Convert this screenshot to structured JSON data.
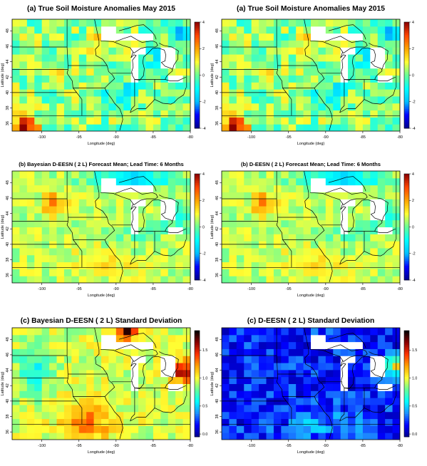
{
  "figure": {
    "layout": "3x2 grid of spatial heat maps over the US Midwest",
    "xlabel": "Longitude (deg)",
    "ylabel": "Latitude (deg)"
  },
  "colors": {
    "scale_anomaly": [
      "#00008b",
      "#0000ff",
      "#00bfff",
      "#00ffff",
      "#66ff99",
      "#ffff33",
      "#ffa500",
      "#ff4500",
      "#8b0000"
    ],
    "scale_sd": [
      "#00008b",
      "#0000ff",
      "#1e90ff",
      "#00ffff",
      "#66ff99",
      "#ffff33",
      "#ffa500",
      "#ff3300",
      "#8b0000",
      "#000000"
    ],
    "missing": "#ffffff",
    "gray_cell": "#bebebe",
    "boundaries": "#000000"
  },
  "chart_data": [
    {
      "type": "heatmap",
      "title": "(a) True Soil Moisture Anomalies  May   2015",
      "xlabel": "Longitude (deg)",
      "ylabel": "Latitude (deg)",
      "xlim": [
        -104,
        -80
      ],
      "ylim": [
        35,
        49.5
      ],
      "xticks": [
        -100,
        -95,
        -90,
        -85,
        -80
      ],
      "yticks": [
        36,
        38,
        40,
        42,
        44,
        46,
        48
      ],
      "colorbar": {
        "range": [
          -4,
          4
        ],
        "ticks": [
          -4,
          -2,
          0,
          2,
          4
        ]
      },
      "field": "truth"
    },
    {
      "type": "heatmap",
      "title": "(a) True Soil Moisture Anomalies  May   2015",
      "xlabel": "Longitude (deg)",
      "ylabel": "Latitude (deg)",
      "xlim": [
        -104,
        -80
      ],
      "ylim": [
        35,
        49.5
      ],
      "xticks": [
        -100,
        -95,
        -90,
        -85,
        -80
      ],
      "yticks": [
        36,
        38,
        40,
        42,
        44,
        46,
        48
      ],
      "colorbar": {
        "range": [
          -4,
          4
        ],
        "ticks": [
          -4,
          -2,
          0,
          2,
          4
        ]
      },
      "field": "truth"
    },
    {
      "type": "heatmap",
      "title": "(b) Bayesian D-EESN ( 2 L) Forecast Mean; Lead Time:  6  Months",
      "xlabel": "Longitude (deg)",
      "ylabel": "Latitude (deg)",
      "xlim": [
        -104,
        -80
      ],
      "ylim": [
        35,
        49.5
      ],
      "xticks": [
        -100,
        -95,
        -90,
        -85,
        -80
      ],
      "yticks": [
        36,
        38,
        40,
        42,
        44,
        46,
        48
      ],
      "colorbar": {
        "range": [
          -4,
          4
        ],
        "ticks": [
          -4,
          -2,
          0,
          2,
          4
        ]
      },
      "field": "forecast"
    },
    {
      "type": "heatmap",
      "title": "(b) D-EESN ( 2 L) Forecast Mean; Lead Time:  6  Months",
      "xlabel": "Longitude (deg)",
      "ylabel": "Latitude (deg)",
      "xlim": [
        -104,
        -80
      ],
      "ylim": [
        35,
        49.5
      ],
      "xticks": [
        -100,
        -95,
        -90,
        -85,
        -80
      ],
      "yticks": [
        36,
        38,
        40,
        42,
        44,
        46,
        48
      ],
      "colorbar": {
        "range": [
          -4,
          4
        ],
        "ticks": [
          -4,
          -2,
          0,
          2,
          4
        ]
      },
      "field": "forecast"
    },
    {
      "type": "heatmap",
      "title": "(c) Bayesian D-EESN ( 2 L) Standard Deviation",
      "xlabel": "Longitude (deg)",
      "ylabel": "Latitude (deg)",
      "xlim": [
        -104,
        -80
      ],
      "ylim": [
        35,
        49.5
      ],
      "xticks": [
        -100,
        -95,
        -90,
        -85,
        -80
      ],
      "yticks": [
        36,
        38,
        40,
        42,
        44,
        46,
        48
      ],
      "colorbar": {
        "range": [
          -0.05,
          1.85
        ],
        "ticks": [
          0.0,
          0.5,
          1.0,
          1.5
        ],
        "tick_labels": [
          "0.0",
          "0.5",
          "1.0",
          "1.5"
        ]
      },
      "field": "sd_bayes"
    },
    {
      "type": "heatmap",
      "title": "(c) D-EESN ( 2 L) Standard Deviation",
      "xlabel": "Longitude (deg)",
      "ylabel": "Latitude (deg)",
      "xlim": [
        -104,
        -80
      ],
      "ylim": [
        35,
        49.5
      ],
      "xticks": [
        -100,
        -95,
        -90,
        -85,
        -80
      ],
      "yticks": [
        36,
        38,
        40,
        42,
        44,
        46,
        48
      ],
      "colorbar": {
        "range": [
          -0.05,
          1.85
        ],
        "ticks": [
          0.0,
          0.5,
          1.0,
          1.5
        ],
        "tick_labels": [
          "0.0",
          "0.5",
          "1.0",
          "1.5"
        ]
      },
      "field": "sd_deesn"
    }
  ]
}
